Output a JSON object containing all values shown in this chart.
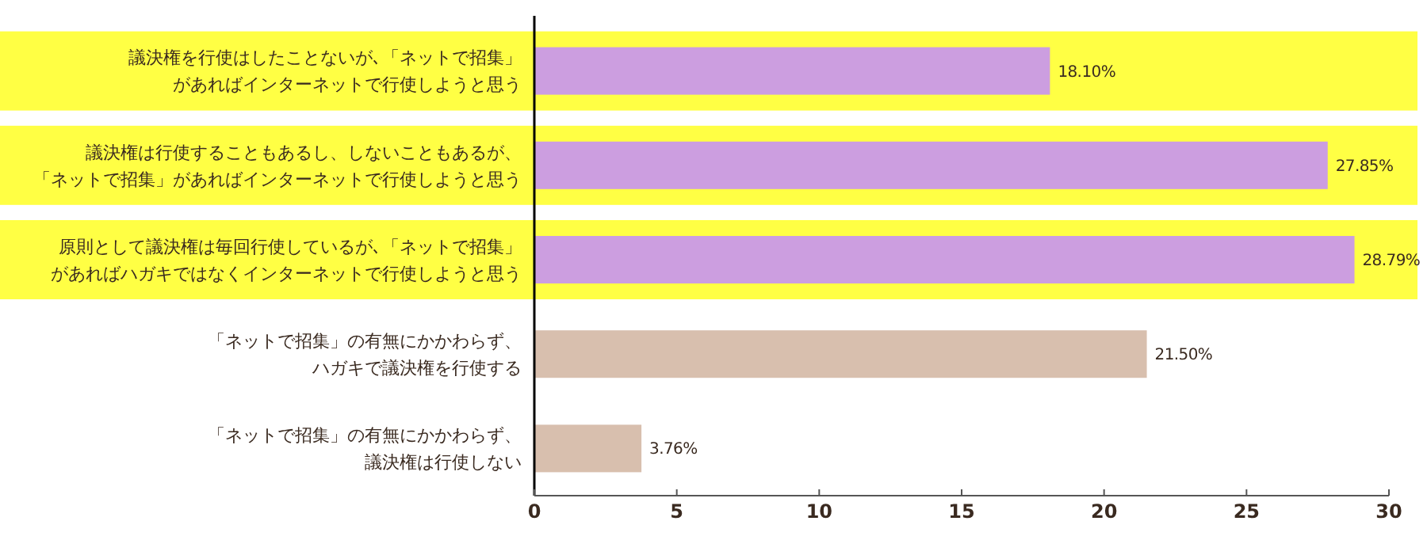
{
  "chart_data": {
    "type": "bar",
    "orientation": "horizontal",
    "categories": [
      "議決権を行使はしたことないが､「ネットで招集」があればインターネットで行使しようと思う",
      "議決権は行使することもあるし、しないこともあるが、「ネットで招集」があればインターネットで行使しようと思う",
      "原則として議決権は毎回行使しているが､「ネットで招集」があればハガキではなくインターネットで行使しようと思う",
      "「ネットで招集」の有無にかかわらず、ハガキで議決権を行使する",
      "「ネットで招集」の有無にかかわらず、議決権は行使しない"
    ],
    "values": [
      18.1,
      27.85,
      28.79,
      21.5,
      3.76
    ],
    "value_labels": [
      "18.10%",
      "27.85%",
      "28.79%",
      "21.50%",
      "3.76%"
    ],
    "colors": [
      "#cc9ee0",
      "#cc9ee0",
      "#cc9ee0",
      "#d8bfae",
      "#d8bfae"
    ],
    "bands": [
      {
        "axis": "y",
        "from": "議決権を行使はしたことないが､「ネットで招集」があればインターネットで行使しようと思う",
        "to": "議決権を行使はしたことないが､「ネットで招集」があればインターネットで行使しようと思う",
        "color": "#ffff44"
      },
      {
        "axis": "y",
        "from": "議決権は行使することもあるし、しないこともあるが、「ネットで招集」があればインターネットで行使しようと思う",
        "to": "議決権は行使することもあるし、しないこともあるが、「ネットで招集」があればインターネットで行使しようと思う",
        "color": "#ffff44"
      },
      {
        "axis": "y",
        "from": "原則として議決権は毎回行使しているが､「ネットで招集」があればハガキではなくインターネットで行使しようと思う",
        "to": "原則として議決権は毎回行使しているが､「ネットで招集」があればハガキではなくインターネットで行使しようと思う",
        "color": "#ffff44"
      }
    ],
    "xlim": [
      0,
      30
    ],
    "xticks": [
      0,
      5,
      10,
      15,
      20,
      25,
      30
    ],
    "grid": false
  }
}
